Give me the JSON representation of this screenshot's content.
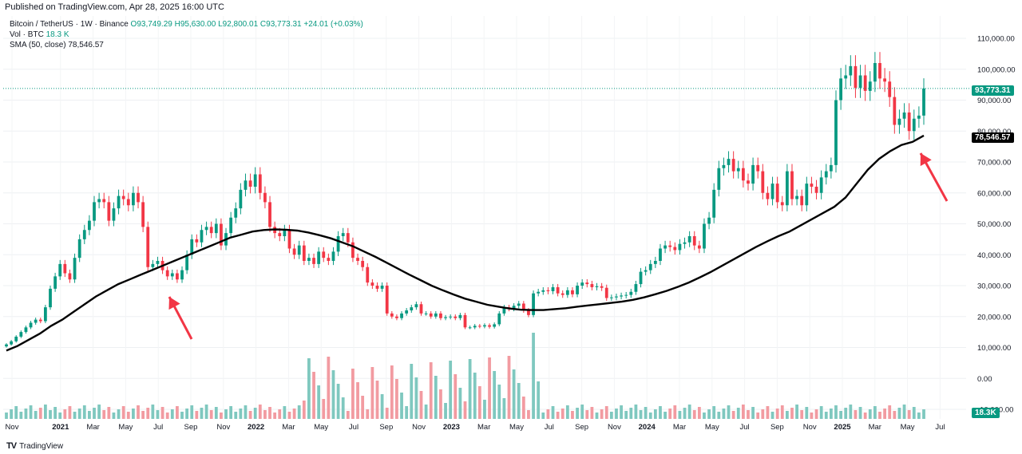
{
  "published": "Published on TradingView.com, Apr 28, 2025 16:00 UTC",
  "legend": {
    "symbol": "Bitcoin / TetherUS · 1W · Binance",
    "ohlc": "O93,749.29 H95,630.00 L92,800.01 C93,773.31 +24.01 (+0.03%)",
    "vol_label": "Vol · BTC",
    "vol_value": "18.3 K",
    "sma_label": "SMA (50, close)",
    "sma_value": "78,546.57"
  },
  "badges": {
    "last_price": "93,773.31",
    "sma": "78,546.57",
    "volume": "18.3K"
  },
  "footer": {
    "brand": "TradingView",
    "logo": "tv-logo-icon"
  },
  "colors": {
    "up": "#089981",
    "down": "#f23645",
    "vol_up": "#7fc8bf",
    "vol_down": "#f29ba1",
    "sma": "#000000",
    "arrow": "#f23645",
    "last_line": "#089981"
  },
  "chart_data": {
    "type": "candlestick",
    "title": "Bitcoin / TetherUS · 1W · Binance",
    "x_tick_labels": [
      "Nov",
      "2021",
      "Mar",
      "May",
      "Jul",
      "Sep",
      "Nov",
      "2022",
      "Mar",
      "May",
      "Jul",
      "Sep",
      "Nov",
      "2023",
      "Mar",
      "May",
      "Jul",
      "Sep",
      "Nov",
      "2024",
      "Mar",
      "May",
      "Jul",
      "Sep",
      "Nov",
      "2025",
      "Mar",
      "May",
      "Jul"
    ],
    "y_tick_labels": [
      "110,000.00",
      "100,000.00",
      "90,000.00",
      "80,000.00",
      "70,000.00",
      "60,000.00",
      "50,000.00",
      "40,000.00",
      "30,000.00",
      "20,000.00",
      "10,000.00",
      "0.00",
      "-10,000.00"
    ],
    "ylim": [
      -10000,
      110000
    ],
    "price_series_close": [
      11000,
      12000,
      13500,
      15000,
      16500,
      18000,
      19000,
      18500,
      23000,
      29000,
      33000,
      37000,
      34000,
      32000,
      39000,
      45000,
      48000,
      51000,
      57000,
      58000,
      57000,
      51000,
      55000,
      59000,
      58000,
      56000,
      60000,
      57000,
      49000,
      36000,
      37000,
      38000,
      35000,
      33000,
      34000,
      32000,
      35000,
      40000,
      45000,
      44000,
      48000,
      49000,
      47000,
      50000,
      43000,
      47000,
      52000,
      55000,
      61000,
      64000,
      62000,
      66000,
      60000,
      57000,
      49000,
      47000,
      46000,
      48000,
      42000,
      40000,
      43000,
      38000,
      39000,
      37000,
      41000,
      39000,
      38000,
      41000,
      46000,
      47000,
      44000,
      39000,
      38000,
      36000,
      31000,
      30000,
      29000,
      30000,
      21000,
      20000,
      19500,
      21000,
      22000,
      23000,
      24000,
      21000,
      21000,
      20000,
      21000,
      19500,
      19800,
      20000,
      19500,
      20500,
      16500,
      16500,
      17000,
      16800,
      17200,
      16700,
      17500,
      21000,
      23000,
      22500,
      23500,
      24200,
      22000,
      20500,
      27500,
      28000,
      28500,
      28200,
      29500,
      27500,
      27000,
      28500,
      27200,
      30000,
      31000,
      30500,
      29500,
      29800,
      29300,
      26000,
      26200,
      26500,
      26800,
      27000,
      28000,
      30500,
      34500,
      35000,
      37000,
      38000,
      42000,
      43000,
      42500,
      41500,
      43500,
      44000,
      46000,
      43000,
      42000,
      50000,
      52000,
      61000,
      68000,
      69000,
      71000,
      67000,
      68000,
      64000,
      63000,
      69000,
      67000,
      60000,
      58000,
      63000,
      57000,
      56000,
      67000,
      58000,
      59000,
      56000,
      63000,
      62000,
      60000,
      65000,
      67000,
      69000,
      90000,
      97000,
      98000,
      101000,
      94000,
      98000,
      93000,
      96000,
      102000,
      97000,
      96000,
      91000,
      82000,
      84000,
      86000,
      80000,
      84000,
      85000,
      93773
    ],
    "sma_50": [
      9000,
      10500,
      12500,
      14500,
      17000,
      19000,
      21500,
      24000,
      26500,
      28500,
      30500,
      32000,
      33500,
      35000,
      36500,
      38000,
      39500,
      41000,
      42500,
      44000,
      45500,
      46500,
      47500,
      48000,
      48200,
      48100,
      47800,
      47200,
      46300,
      45300,
      44000,
      42700,
      41000,
      39300,
      37400,
      35500,
      33600,
      31800,
      30000,
      28500,
      27100,
      25800,
      24800,
      23800,
      23200,
      22600,
      22200,
      22100,
      22100,
      22400,
      22700,
      23200,
      23600,
      24000,
      24400,
      24800,
      25400,
      26200,
      27200,
      28300,
      29600,
      31000,
      32700,
      34500,
      36500,
      38500,
      40500,
      42500,
      44300,
      46000,
      47500,
      49500,
      51500,
      53500,
      55500,
      58500,
      63000,
      67500,
      71000,
      73500,
      75500,
      76500,
      78546.57
    ],
    "last_price": 93773.31,
    "sma_last": 78546.57,
    "volume_last_label": "18.3K",
    "annotations": [
      {
        "type": "arrow",
        "target": "sma_touch_2021_jul"
      },
      {
        "type": "arrow",
        "target": "sma_touch_2025_apr"
      }
    ]
  }
}
